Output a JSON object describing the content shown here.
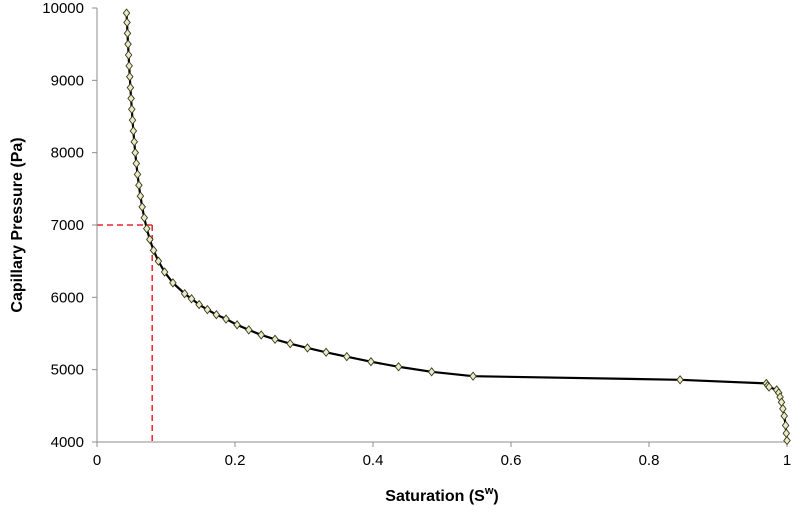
{
  "chart_data": {
    "type": "line",
    "xlabel": "Saturation (S",
    "xlabel_superscript": "w",
    "xlabel_close": ")",
    "ylabel": "Capillary Pressure (Pa)",
    "xlim": [
      0,
      1
    ],
    "ylim": [
      4000,
      10000
    ],
    "x_ticks": [
      "0",
      "0.2",
      "0.4",
      "0.6",
      "0.8",
      "1"
    ],
    "x_tick_values": [
      0,
      0.2,
      0.4,
      0.6,
      0.8,
      1
    ],
    "y_ticks": [
      "4000",
      "5000",
      "6000",
      "7000",
      "8000",
      "9000",
      "10000"
    ],
    "y_tick_values": [
      4000,
      5000,
      6000,
      7000,
      8000,
      9000,
      10000
    ],
    "grid": false,
    "legend": "none",
    "colors": {
      "line": "#000000",
      "marker_stroke": "#3a3a18",
      "marker_fill": "#e9eccb",
      "guide": "#e8262d"
    },
    "reference_point": {
      "x": 0.08,
      "y": 7000
    },
    "series": [
      {
        "points": [
          [
            0.0428,
            9930
          ],
          [
            0.0435,
            9800
          ],
          [
            0.0442,
            9650
          ],
          [
            0.045,
            9500
          ],
          [
            0.0458,
            9350
          ],
          [
            0.0466,
            9200
          ],
          [
            0.0475,
            9050
          ],
          [
            0.0484,
            8900
          ],
          [
            0.0494,
            8750
          ],
          [
            0.0504,
            8600
          ],
          [
            0.0515,
            8450
          ],
          [
            0.0527,
            8300
          ],
          [
            0.054,
            8150
          ],
          [
            0.0554,
            8000
          ],
          [
            0.057,
            7850
          ],
          [
            0.0587,
            7700
          ],
          [
            0.0607,
            7550
          ],
          [
            0.0629,
            7400
          ],
          [
            0.0655,
            7250
          ],
          [
            0.0685,
            7100
          ],
          [
            0.0721,
            6950
          ],
          [
            0.0765,
            6800
          ],
          [
            0.082,
            6650
          ],
          [
            0.089,
            6500
          ],
          [
            0.098,
            6350
          ],
          [
            0.11,
            6200
          ],
          [
            0.127,
            6050
          ],
          [
            0.137,
            5980
          ],
          [
            0.148,
            5900
          ],
          [
            0.16,
            5830
          ],
          [
            0.173,
            5760
          ],
          [
            0.187,
            5700
          ],
          [
            0.203,
            5620
          ],
          [
            0.22,
            5550
          ],
          [
            0.238,
            5480
          ],
          [
            0.258,
            5420
          ],
          [
            0.28,
            5360
          ],
          [
            0.305,
            5300
          ],
          [
            0.332,
            5240
          ],
          [
            0.362,
            5180
          ],
          [
            0.397,
            5110
          ],
          [
            0.437,
            5040
          ],
          [
            0.485,
            4970
          ],
          [
            0.545,
            4910
          ],
          [
            0.845,
            4860
          ],
          [
            0.97,
            4810
          ],
          [
            0.972,
            4780
          ],
          [
            0.974,
            4760
          ],
          [
            0.985,
            4720
          ],
          [
            0.988,
            4680
          ],
          [
            0.99,
            4620
          ],
          [
            0.992,
            4550
          ],
          [
            0.994,
            4460
          ],
          [
            0.996,
            4360
          ],
          [
            0.998,
            4230
          ],
          [
            0.999,
            4120
          ],
          [
            1.0,
            4020
          ]
        ]
      }
    ]
  }
}
